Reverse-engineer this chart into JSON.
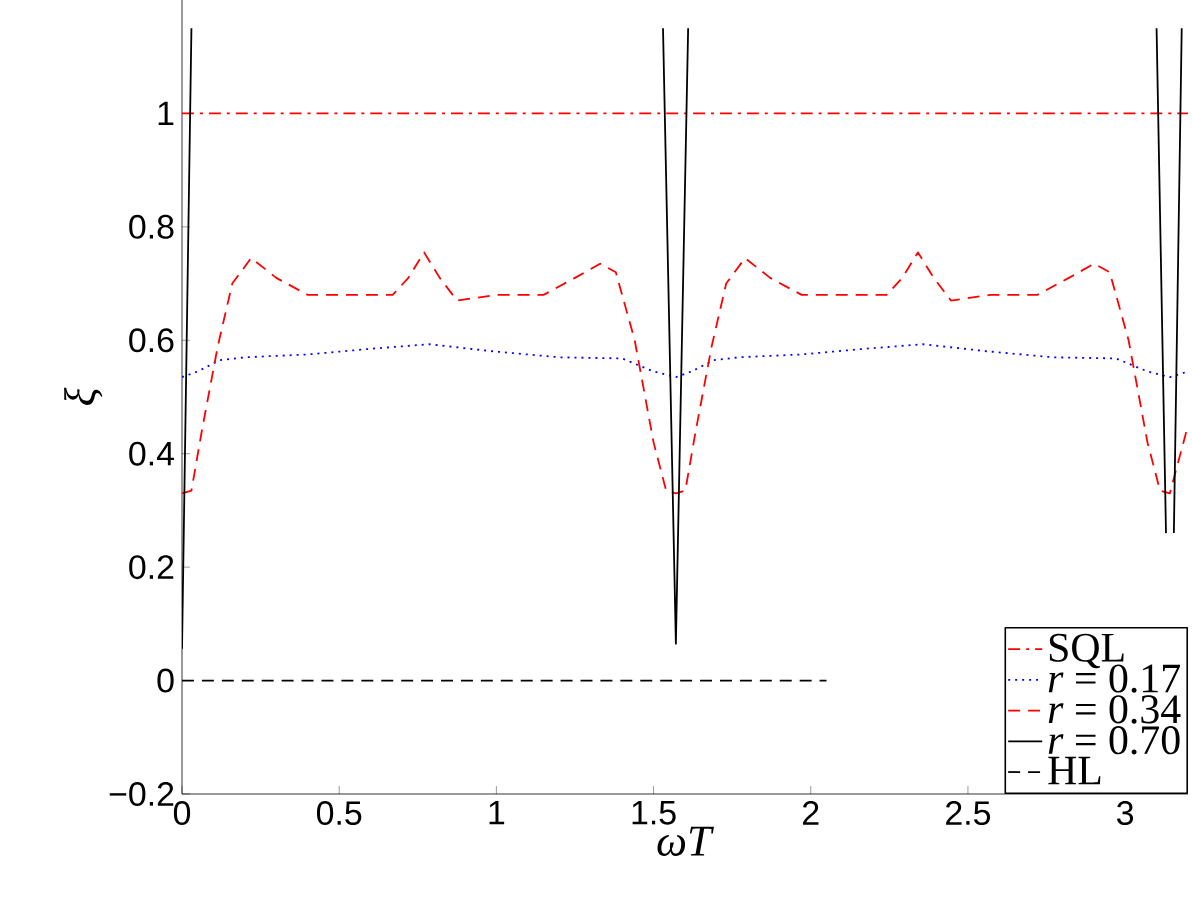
{
  "chart_data": {
    "type": "line",
    "xlabel": "*ωT*",
    "ylabel": "*ξ*",
    "xlim": [
      0,
      3.2
    ],
    "ylim": [
      -0.2,
      1.2
    ],
    "xticks": [
      0,
      0.5,
      1,
      1.5,
      2,
      2.5,
      3
    ],
    "yticks": [
      {
        "value": -0.2,
        "label": "−0.2"
      },
      0,
      0.2,
      0.4,
      0.6,
      0.8,
      1
    ],
    "grid": false,
    "legend": "bottom right",
    "marker": "none",
    "series": [
      {
        "name": "SQL",
        "color": "#ff0000",
        "line_style": "dashdot",
        "x": [
          0,
          3.2
        ],
        "values": [
          1,
          1
        ]
      },
      {
        "name": "*r* = 0.17",
        "color": "#0000ff",
        "line_style": "dotted",
        "x": [
          0,
          0.05,
          0.12,
          0.2,
          0.4,
          0.6,
          0.785,
          1.0,
          1.2,
          1.4,
          1.5,
          1.571,
          1.621,
          1.691,
          1.771,
          1.971,
          2.171,
          2.356,
          2.571,
          2.771,
          2.971,
          3.071,
          3.142,
          3.2
        ],
        "values": [
          0.535,
          0.545,
          0.565,
          0.57,
          0.575,
          0.585,
          0.593,
          0.58,
          0.57,
          0.568,
          0.545,
          0.535,
          0.545,
          0.565,
          0.57,
          0.575,
          0.585,
          0.593,
          0.58,
          0.57,
          0.568,
          0.545,
          0.535,
          0.545
        ]
      },
      {
        "name": "*r* = 0.34",
        "color": "#ff0000",
        "line_style": "dashed",
        "x": [
          0,
          0.03,
          0.063,
          0.114,
          0.16,
          0.22,
          0.3,
          0.4,
          0.55,
          0.67,
          0.72,
          0.77,
          0.82,
          0.875,
          1.0,
          1.15,
          1.25,
          1.33,
          1.38,
          1.44,
          1.5,
          1.54,
          1.571,
          1.601,
          1.634,
          1.685,
          1.731,
          1.791,
          1.871,
          1.971,
          2.121,
          2.241,
          2.291,
          2.341,
          2.391,
          2.446,
          2.571,
          2.721,
          2.821,
          2.901,
          2.951,
          3.011,
          3.071,
          3.111,
          3.142,
          3.2
        ],
        "values": [
          0.33,
          0.335,
          0.44,
          0.59,
          0.7,
          0.745,
          0.71,
          0.68,
          0.68,
          0.68,
          0.71,
          0.755,
          0.71,
          0.67,
          0.68,
          0.68,
          0.71,
          0.735,
          0.72,
          0.6,
          0.42,
          0.335,
          0.33,
          0.335,
          0.44,
          0.59,
          0.7,
          0.745,
          0.71,
          0.68,
          0.68,
          0.68,
          0.71,
          0.755,
          0.71,
          0.67,
          0.68,
          0.68,
          0.71,
          0.735,
          0.72,
          0.6,
          0.42,
          0.335,
          0.33,
          0.45
        ]
      },
      {
        "name": "*r* = 0.70",
        "color": "#000000",
        "line_style": "solid",
        "x": [
          0,
          0.03,
          0.8,
          1.53,
          1.571,
          1.61,
          2.4,
          3.1,
          3.13,
          3.14,
          3.155,
          3.18
        ],
        "values": [
          0.056,
          1.15,
          null,
          1.15,
          0.065,
          1.15,
          null,
          1.15,
          0.26,
          null,
          0.26,
          1.15
        ]
      },
      {
        "name": "HL",
        "color": "#000000",
        "line_style": "dashed",
        "x": [
          0,
          2.05
        ],
        "values": [
          0,
          0
        ]
      }
    ]
  }
}
